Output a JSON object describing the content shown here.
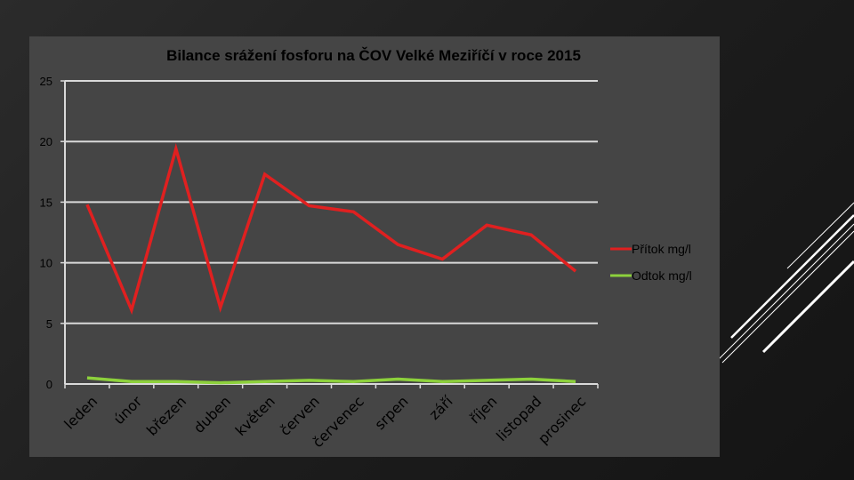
{
  "chart_data": {
    "type": "line",
    "title": "Bilance srážení fosforu na ČOV Velké Meziříčí v roce 2015",
    "xlabel": "",
    "ylabel": "",
    "ylim": [
      0,
      25
    ],
    "yticks": [
      0,
      5,
      10,
      15,
      20,
      25
    ],
    "grid": true,
    "legend_position": "right",
    "categories": [
      "leden",
      "únor",
      "březen",
      "duben",
      "květen",
      "červen",
      "červenec",
      "srpen",
      "září",
      "říjen",
      "listopad",
      "prosinec"
    ],
    "series": [
      {
        "name": "Přítok mg/l",
        "color": "#e02020",
        "values": [
          14.8,
          6.1,
          19.4,
          6.3,
          17.3,
          14.7,
          14.2,
          11.5,
          10.3,
          13.1,
          12.3,
          9.3
        ]
      },
      {
        "name": "Odtok mg/l",
        "color": "#8dd13c",
        "values": [
          0.5,
          0.2,
          0.2,
          0.1,
          0.2,
          0.3,
          0.2,
          0.4,
          0.2,
          0.3,
          0.4,
          0.2
        ]
      }
    ]
  },
  "colors": {
    "plot_background": "#454545",
    "gridline": "#d9d9d9",
    "decor_lines": "#ffffff"
  }
}
